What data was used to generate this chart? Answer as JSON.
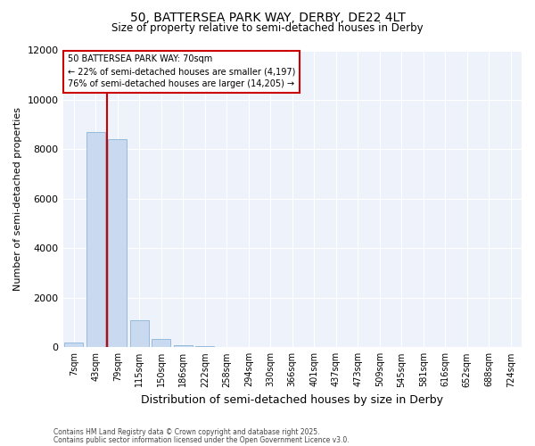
{
  "title_line1": "50, BATTERSEA PARK WAY, DERBY, DE22 4LT",
  "title_line2": "Size of property relative to semi-detached houses in Derby",
  "xlabel": "Distribution of semi-detached houses by size in Derby",
  "ylabel": "Number of semi-detached properties",
  "categories": [
    "7sqm",
    "43sqm",
    "79sqm",
    "115sqm",
    "150sqm",
    "186sqm",
    "222sqm",
    "258sqm",
    "294sqm",
    "330sqm",
    "366sqm",
    "401sqm",
    "437sqm",
    "473sqm",
    "509sqm",
    "545sqm",
    "581sqm",
    "616sqm",
    "652sqm",
    "688sqm",
    "724sqm"
  ],
  "values": [
    200,
    8700,
    8400,
    1100,
    350,
    100,
    50,
    5,
    2,
    1,
    0,
    0,
    0,
    0,
    0,
    0,
    0,
    0,
    0,
    0,
    0
  ],
  "bar_color": "#c8d9f0",
  "bar_edge_color": "#8ab4d8",
  "redline_x": 1.5,
  "ann_title": "50 BATTERSEA PARK WAY: 70sqm",
  "ann_smaller": "← 22% of semi-detached houses are smaller (4,197)",
  "ann_larger": "76% of semi-detached houses are larger (14,205) →",
  "ann_box_color": "#cc0000",
  "ylim": [
    0,
    12000
  ],
  "yticks": [
    0,
    2000,
    4000,
    6000,
    8000,
    10000,
    12000
  ],
  "background_color": "#ffffff",
  "plot_bg_color": "#eef2fb",
  "grid_color": "#ffffff",
  "footer_line1": "Contains HM Land Registry data © Crown copyright and database right 2025.",
  "footer_line2": "Contains public sector information licensed under the Open Government Licence v3.0."
}
